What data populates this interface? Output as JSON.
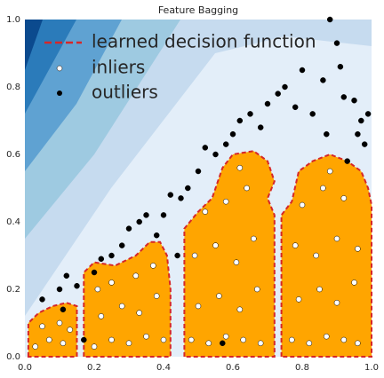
{
  "chart_data": {
    "type": "scatter",
    "title": "Feature Bagging",
    "xlim": [
      0,
      1
    ],
    "ylim": [
      0,
      1
    ],
    "xticks": [
      {
        "value": 0,
        "label": "0.0"
      },
      0.2,
      0.4,
      0.6,
      0.8,
      {
        "value": 1,
        "label": "1.0"
      }
    ],
    "yticks": [
      {
        "value": 0,
        "label": "0.0"
      },
      0.2,
      0.4,
      0.6,
      0.8,
      {
        "value": 1,
        "label": "1.0"
      }
    ],
    "legend": "upper left",
    "series": [
      {
        "name": "learned decision function",
        "color": "#d62728",
        "fill": "#ffa500",
        "polygons": [
          {
            "x": [
              0.01,
              0.01,
              0.04,
              0.08,
              0.12,
              0.15,
              0.15
            ],
            "y": [
              0,
              0.1,
              0.13,
              0.15,
              0.16,
              0.15,
              0
            ]
          },
          {
            "x": [
              0.17,
              0.17,
              0.2,
              0.26,
              0.32,
              0.36,
              0.39,
              0.41,
              0.42,
              0.42
            ],
            "y": [
              0,
              0.25,
              0.28,
              0.27,
              0.3,
              0.34,
              0.34,
              0.3,
              0.2,
              0
            ]
          },
          {
            "x": [
              0.46,
              0.46,
              0.5,
              0.54,
              0.57,
              0.6,
              0.66,
              0.7,
              0.72,
              0.7,
              0.72,
              0.72
            ],
            "y": [
              0,
              0.38,
              0.43,
              0.47,
              0.56,
              0.6,
              0.61,
              0.58,
              0.52,
              0.47,
              0.42,
              0
            ]
          },
          {
            "x": [
              0.74,
              0.74,
              0.77,
              0.79,
              0.83,
              0.88,
              0.93,
              0.97,
              0.99,
              1.0,
              1.0
            ],
            "y": [
              0,
              0.42,
              0.46,
              0.55,
              0.58,
              0.6,
              0.58,
              0.55,
              0.5,
              0.45,
              0
            ]
          }
        ]
      },
      {
        "name": "inliers",
        "color": "#ffffff",
        "x": [
          0.03,
          0.07,
          0.11,
          0.05,
          0.1,
          0.13,
          0.2,
          0.25,
          0.3,
          0.35,
          0.4,
          0.22,
          0.28,
          0.33,
          0.38,
          0.25,
          0.32,
          0.37,
          0.21,
          0.48,
          0.53,
          0.58,
          0.63,
          0.68,
          0.5,
          0.56,
          0.62,
          0.67,
          0.49,
          0.55,
          0.61,
          0.66,
          0.52,
          0.58,
          0.64,
          0.62,
          0.77,
          0.82,
          0.87,
          0.92,
          0.96,
          0.79,
          0.85,
          0.9,
          0.95,
          0.78,
          0.84,
          0.9,
          0.96,
          0.8,
          0.86,
          0.92,
          0.88
        ],
        "y": [
          0.03,
          0.05,
          0.04,
          0.09,
          0.1,
          0.08,
          0.03,
          0.05,
          0.04,
          0.06,
          0.05,
          0.12,
          0.15,
          0.13,
          0.18,
          0.22,
          0.24,
          0.27,
          0.2,
          0.05,
          0.04,
          0.06,
          0.05,
          0.04,
          0.15,
          0.18,
          0.14,
          0.2,
          0.3,
          0.33,
          0.28,
          0.35,
          0.43,
          0.46,
          0.5,
          0.56,
          0.05,
          0.04,
          0.06,
          0.05,
          0.04,
          0.17,
          0.2,
          0.16,
          0.22,
          0.33,
          0.3,
          0.35,
          0.32,
          0.45,
          0.5,
          0.47,
          0.55
        ]
      },
      {
        "name": "outliers",
        "color": "#000000",
        "x": [
          0.05,
          0.1,
          0.12,
          0.11,
          0.15,
          0.2,
          0.22,
          0.25,
          0.28,
          0.3,
          0.33,
          0.35,
          0.38,
          0.4,
          0.42,
          0.45,
          0.47,
          0.5,
          0.52,
          0.55,
          0.58,
          0.6,
          0.62,
          0.65,
          0.68,
          0.7,
          0.73,
          0.75,
          0.78,
          0.8,
          0.83,
          0.86,
          0.88,
          0.9,
          0.92,
          0.95,
          0.97,
          0.99,
          0.93,
          0.96,
          0.98,
          0.87,
          0.91,
          0.44,
          0.17,
          0.57
        ],
        "y": [
          0.17,
          0.2,
          0.24,
          0.14,
          0.21,
          0.25,
          0.29,
          0.3,
          0.33,
          0.38,
          0.4,
          0.42,
          0.36,
          0.42,
          0.48,
          0.47,
          0.5,
          0.55,
          0.62,
          0.6,
          0.63,
          0.66,
          0.7,
          0.72,
          0.68,
          0.75,
          0.78,
          0.8,
          0.74,
          0.85,
          0.72,
          0.82,
          1.0,
          0.93,
          0.77,
          0.76,
          0.7,
          0.72,
          0.58,
          0.66,
          0.63,
          0.66,
          0.86,
          0.3,
          0.05,
          0.04
        ]
      }
    ]
  }
}
